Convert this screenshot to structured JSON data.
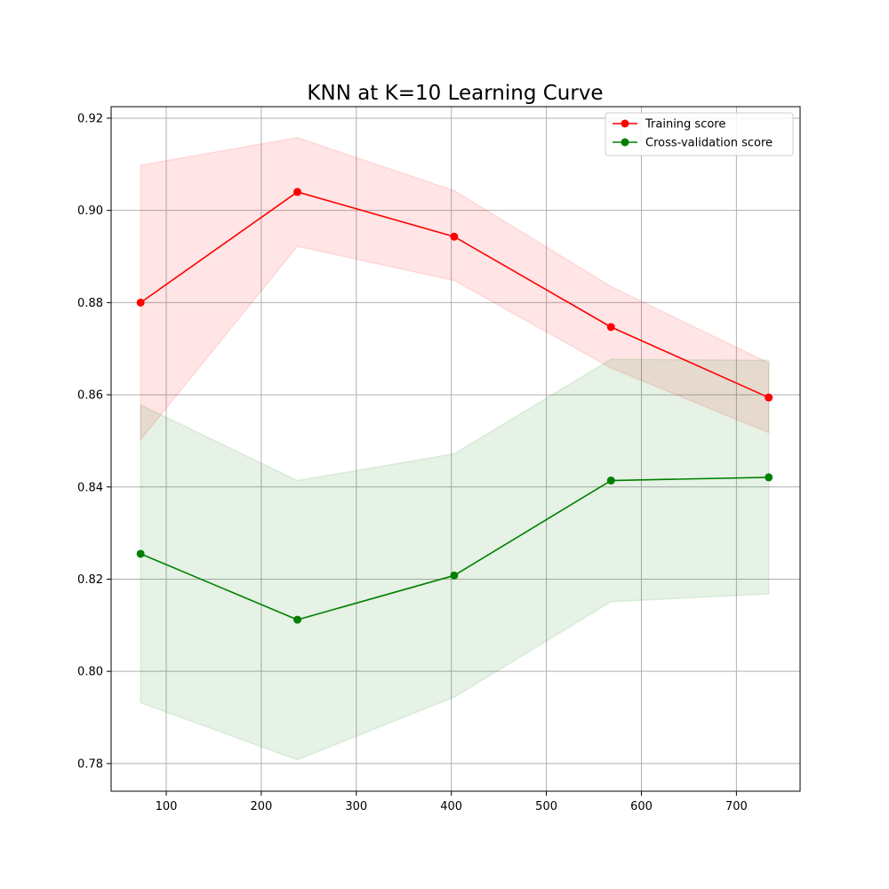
{
  "chart_data": {
    "type": "line",
    "title": "KNN at K=10 Learning Curve",
    "xlabel": "",
    "ylabel": "",
    "xlim": [
      42,
      767
    ],
    "ylim": [
      0.774,
      0.9225
    ],
    "xticks": [
      100,
      200,
      300,
      400,
      500,
      600,
      700
    ],
    "yticks": [
      0.78,
      0.8,
      0.82,
      0.84,
      0.86,
      0.88,
      0.9,
      0.92
    ],
    "grid": true,
    "legend_position": "top-right",
    "x": [
      73,
      238,
      403,
      568,
      734
    ],
    "series": [
      {
        "name": "Training score",
        "color": "#ff0000",
        "band_color": "#ff0000",
        "values": [
          0.88,
          0.904,
          0.8943,
          0.8747,
          0.8594
        ],
        "band_upper": [
          0.9098,
          0.9158,
          0.9043,
          0.8835,
          0.8669
        ],
        "band_lower": [
          0.8502,
          0.8922,
          0.8848,
          0.8658,
          0.8518
        ]
      },
      {
        "name": "Cross-validation score",
        "color": "#008000",
        "band_color": "#008000",
        "values": [
          0.8255,
          0.8112,
          0.8208,
          0.8414,
          0.8421
        ],
        "band_upper": [
          0.8578,
          0.8414,
          0.8472,
          0.8677,
          0.8675
        ],
        "band_lower": [
          0.7932,
          0.7808,
          0.7944,
          0.8151,
          0.8168
        ]
      }
    ]
  }
}
